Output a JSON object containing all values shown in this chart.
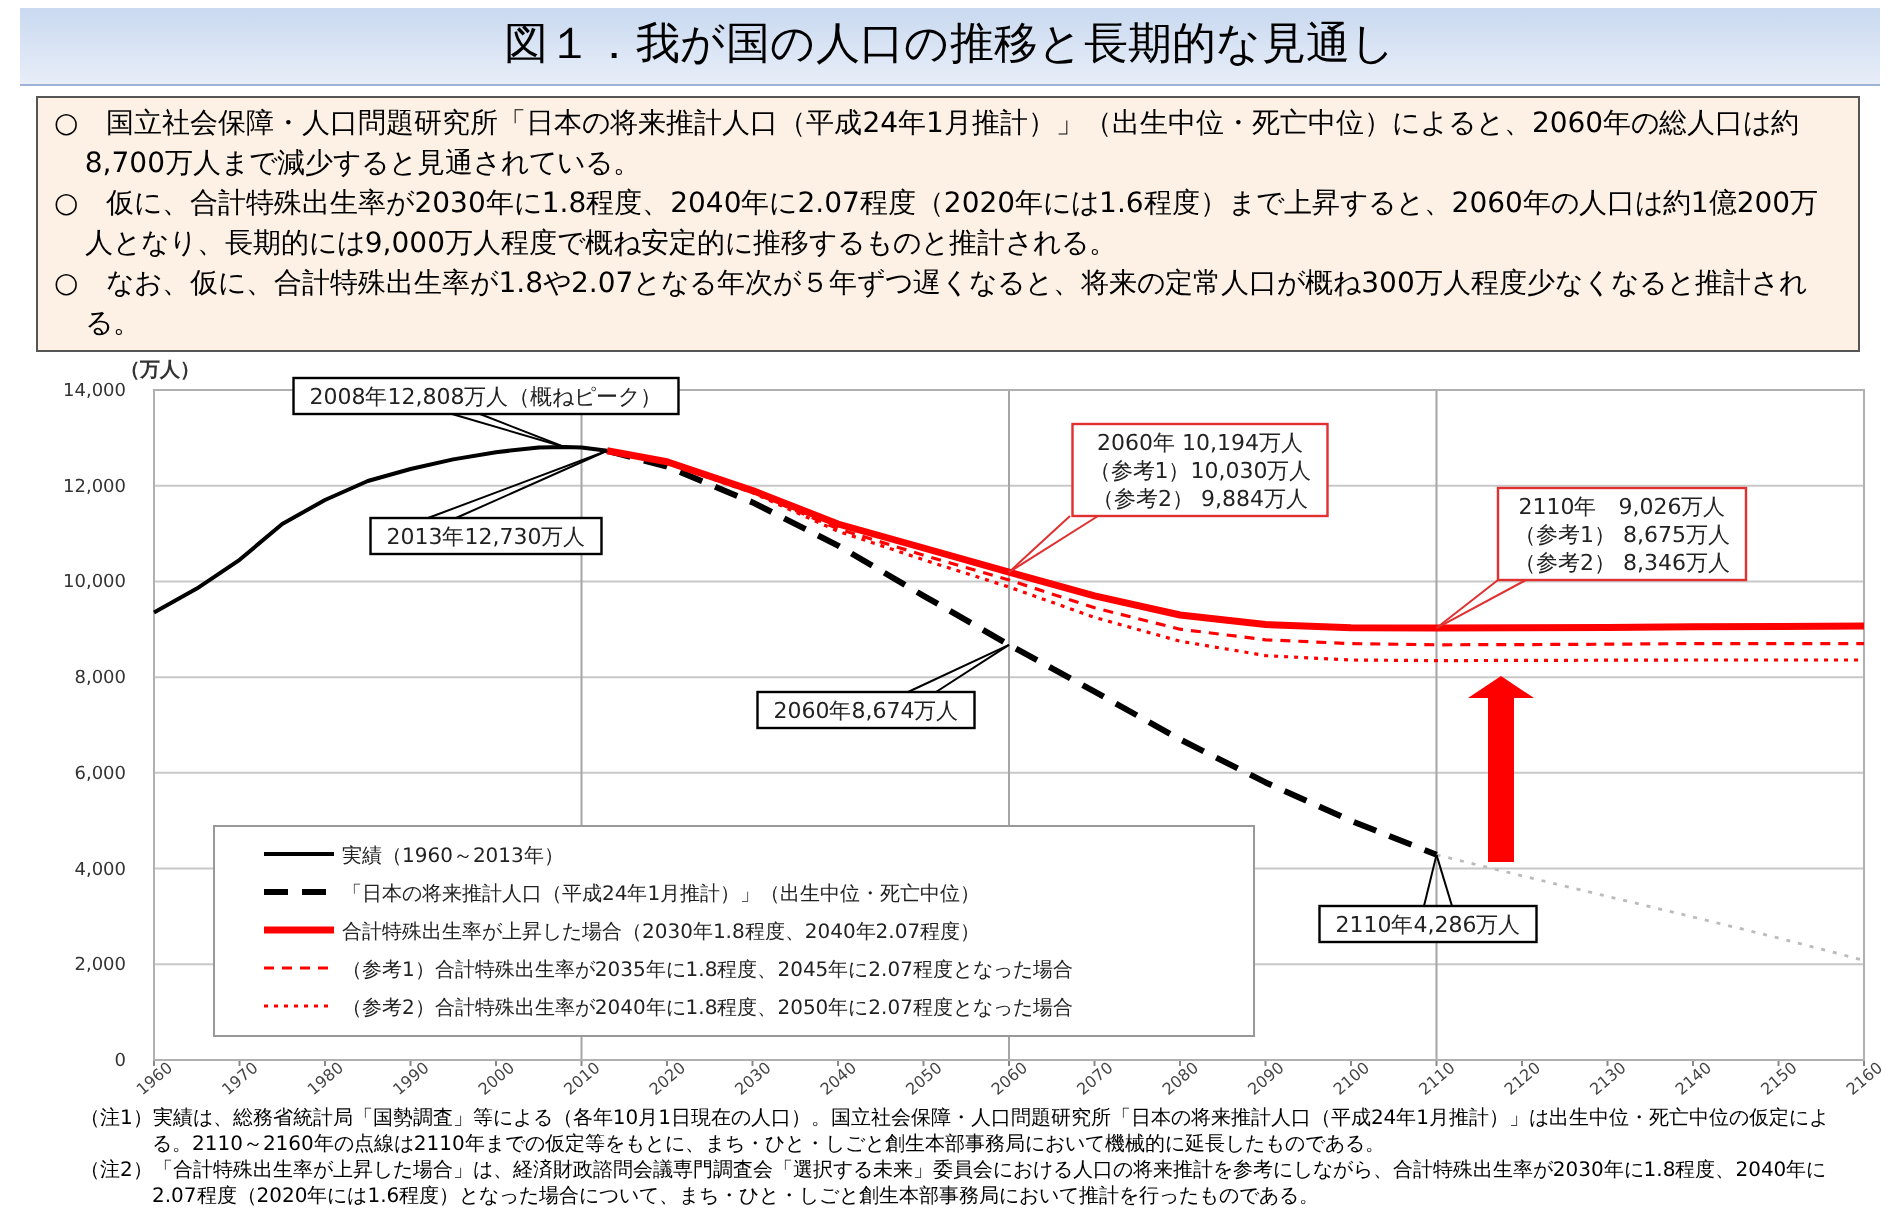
{
  "chart_data": {
    "type": "line",
    "title": "図１．我が国の人口の推移と長期的な見通し",
    "subtitle": "○　国立社会保障・人口問題研究所「日本の将来推計人口（平成24年1月推計）」（出生中位・死亡中位）によると、2060年の総人口は約8,700万人まで減少すると見通されている。\n○　仮に、合計特殊出生率が2030年に1.8程度、2040年に2.07程度（2020年には1.6程度）まで上昇すると、2060年の人口は約1億200万人となり、長期的には9,000万人程度で概ね安定的に推移するものと推計される。\n○　なお、仮に、合計特殊出生率が1.8や2.07となる年次が５年ずつ遅くなると、将来の定常人口が概ね300万人程度少なくなると推計される。",
    "ylabel": "（万人）",
    "xlim": [
      1960,
      2160
    ],
    "xticks": [
      1960,
      1970,
      1980,
      1990,
      2000,
      2010,
      2020,
      2030,
      2040,
      2050,
      2060,
      2070,
      2080,
      2090,
      2100,
      2110,
      2120,
      2130,
      2140,
      2150,
      2160
    ],
    "ylim": [
      0,
      14000
    ],
    "yticks": [
      0,
      {
        "value": 2000,
        "label": "2,000"
      },
      {
        "value": 4000,
        "label": "4,000"
      },
      {
        "value": 6000,
        "label": "6,000"
      },
      {
        "value": 8000,
        "label": "8,000"
      },
      {
        "value": 10000,
        "label": "10,000"
      },
      {
        "value": 12000,
        "label": "12,000"
      },
      {
        "value": 14000,
        "label": "14,000"
      }
    ],
    "grid": "y",
    "legend": "bottom left",
    "ref_lines": [
      {
        "axis": "x",
        "value": 2010,
        "color": "#a6a6a6"
      },
      {
        "axis": "x",
        "value": 2060,
        "color": "#a6a6a6"
      },
      {
        "axis": "x",
        "value": 2110,
        "color": "#a6a6a6"
      }
    ],
    "series": [
      {
        "name": "実績（1960～2013年）",
        "color": "#000000",
        "line_style": "solid",
        "x": [
          1960,
          1965,
          1970,
          1975,
          1980,
          1985,
          1990,
          1995,
          2000,
          2005,
          2008,
          2010,
          2013
        ],
        "values": [
          9350,
          9850,
          10450,
          11200,
          11700,
          12100,
          12350,
          12550,
          12700,
          12800,
          12808,
          12800,
          12730
        ]
      },
      {
        "name": "「日本の将来推計人口（平成24年1月推計）」（出生中位・死亡中位）",
        "color": "#000000",
        "line_style": "dashed",
        "x": [
          2013,
          2020,
          2030,
          2040,
          2050,
          2060,
          2070,
          2080,
          2090,
          2100,
          2110
        ],
        "values": [
          12730,
          12400,
          11650,
          10750,
          9700,
          8674,
          7700,
          6700,
          5800,
          5000,
          4286
        ]
      },
      {
        "name": "合計特殊出生率が上昇した場合（2030年1.8程度、2040年2.07程度）",
        "color": "#ff0000",
        "line_style": "solid",
        "x": [
          2013,
          2020,
          2030,
          2040,
          2050,
          2060,
          2070,
          2080,
          2090,
          2100,
          2110,
          2120,
          2130,
          2140,
          2150,
          2160
        ],
        "values": [
          12730,
          12500,
          11900,
          11200,
          10700,
          10194,
          9700,
          9300,
          9100,
          9030,
          9026,
          9030,
          9040,
          9050,
          9060,
          9070
        ]
      },
      {
        "name": "（参考1）合計特殊出生率が2035年に1.8程度、2045年に2.07程度となった場合",
        "color": "#ff0000",
        "line_style": "dashed",
        "x": [
          2013,
          2020,
          2030,
          2040,
          2050,
          2060,
          2070,
          2080,
          2090,
          2100,
          2110,
          2120,
          2130,
          2140,
          2150,
          2160
        ],
        "values": [
          12730,
          12480,
          11870,
          11100,
          10550,
          10030,
          9450,
          9000,
          8780,
          8700,
          8675,
          8680,
          8690,
          8700,
          8700,
          8700
        ]
      },
      {
        "name": "（参考2）合計特殊出生率が2040年に1.8程度、2050年に2.07程度となった場合",
        "color": "#ff0000",
        "line_style": "dotted",
        "x": [
          2013,
          2020,
          2030,
          2040,
          2050,
          2060,
          2070,
          2080,
          2090,
          2100,
          2110,
          2120,
          2130,
          2140,
          2150,
          2160
        ],
        "values": [
          12730,
          12470,
          11850,
          11050,
          10450,
          9884,
          9250,
          8750,
          8450,
          8360,
          8346,
          8350,
          8355,
          8360,
          8360,
          8360
        ]
      },
      {
        "color": "#bbbbbb",
        "line_style": "dotted",
        "x": [
          2110,
          2120,
          2130,
          2140,
          2150,
          2160
        ],
        "values": [
          4286,
          3850,
          3420,
          2990,
          2550,
          2080
        ]
      }
    ],
    "annotations": [
      {
        "text": "2008年12,808万人（概ねピーク）",
        "x": 2008,
        "y": 12808
      },
      {
        "text": "2013年12,730万人",
        "x": 2013,
        "y": 12730
      },
      "2060年 10,194万人",
      "（参考1）10,030万人",
      {
        "text": "（参考2） 9,884万人",
        "x": 2060,
        "y": 10194
      },
      "2110年　9,026万人",
      "（参考1） 8,675万人",
      {
        "text": "（参考2） 8,346万人",
        "x": 2110,
        "y": 9026
      },
      {
        "text": "2060年8,674万人",
        "x": 2060,
        "y": 8674
      },
      {
        "text": "2110年4,286万人",
        "x": 2110,
        "y": 4286
      },
      "（注1）実績は、総務省統計局「国勢調査」等による（各年10月1日現在の人口）。国立社会保障・人口問題研究所「日本の将来推計人口（平成24年1月推計）」は出生中位・死亡中位の仮定による。2110～2160年の点線は2110年までの仮定等をもとに、まち・ひと・しごと創生本部事務局において機械的に延長したものである。",
      "（注2）「合計特殊出生率が上昇した場合」は、経済財政諮問会議専門調査会「選択する未来」委員会における人口の将来推計を参考にしながら、合計特殊出生率が2030年に1.8程度、2040年に2.07程度（2020年には1.6程度）となった場合について、まち・ひと・しごと創生本部事務局において推計を行ったものである。"
    ]
  }
}
